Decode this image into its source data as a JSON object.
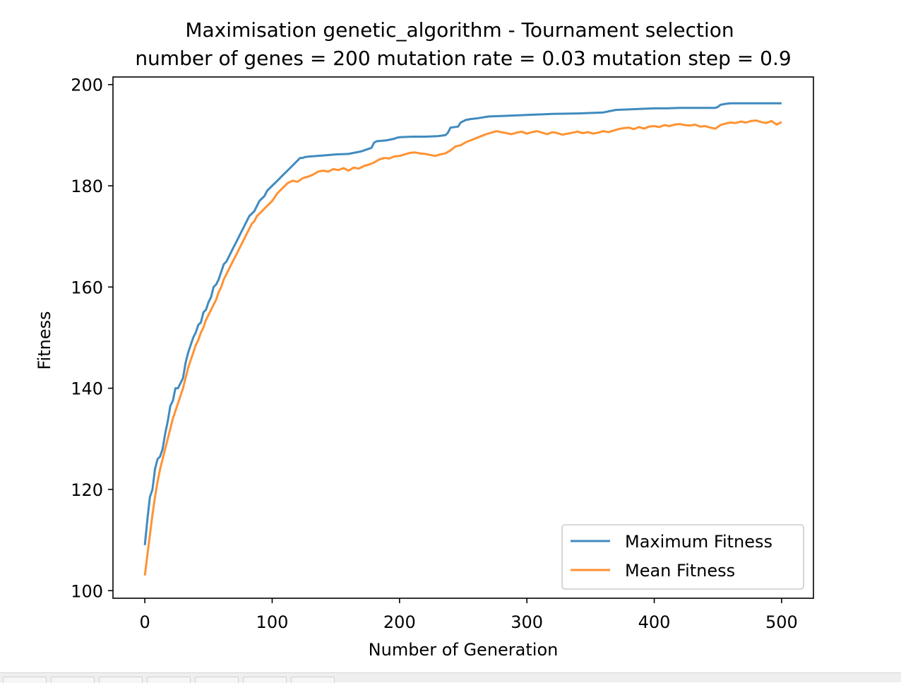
{
  "chart_data": {
    "type": "line",
    "title": "Maximisation genetic_algorithm - Tournament selection",
    "subtitle": "number of genes = 200 mutation rate = 0.03 mutation step = 0.9",
    "xlabel": "Number of Generation",
    "ylabel": "Fitness",
    "xlim": [
      -25,
      525
    ],
    "ylim": [
      98.5,
      201.5
    ],
    "xticks": [
      0,
      100,
      200,
      300,
      400,
      500
    ],
    "yticks": [
      100,
      120,
      140,
      160,
      180,
      200
    ],
    "grid": false,
    "legend_position": "lower-right",
    "series": [
      {
        "name": "Maximum Fitness",
        "color": "#1f77b4",
        "x": [
          0,
          2,
          4,
          6,
          8,
          10,
          12,
          14,
          16,
          18,
          20,
          22,
          24,
          26,
          28,
          30,
          32,
          34,
          36,
          38,
          40,
          42,
          44,
          46,
          48,
          50,
          52,
          54,
          56,
          58,
          60,
          62,
          64,
          66,
          68,
          70,
          72,
          74,
          76,
          78,
          80,
          82,
          84,
          86,
          88,
          90,
          92,
          94,
          96,
          98,
          100,
          102,
          104,
          106,
          108,
          110,
          112,
          114,
          116,
          118,
          120,
          122,
          124,
          126,
          130,
          140,
          150,
          160,
          170,
          178,
          180,
          182,
          190,
          196,
          198,
          200,
          210,
          220,
          230,
          236,
          238,
          240,
          246,
          248,
          252,
          256,
          260,
          270,
          280,
          290,
          300,
          320,
          340,
          360,
          366,
          370,
          380,
          390,
          400,
          410,
          420,
          430,
          440,
          448,
          450,
          452,
          456,
          460,
          470,
          480,
          490,
          500
        ],
        "values": [
          109,
          114,
          118.5,
          120,
          124,
          126,
          126.5,
          128,
          131,
          133.5,
          136.5,
          137.5,
          140,
          140,
          141,
          142,
          145,
          147,
          148.5,
          150,
          151,
          152.5,
          153,
          155,
          155.5,
          157,
          158,
          160,
          160.5,
          161.5,
          163,
          164.5,
          165,
          166,
          167,
          168,
          169,
          170,
          171,
          172,
          173,
          174,
          174.5,
          175,
          176,
          177,
          177.5,
          178,
          179,
          179.5,
          180,
          180.5,
          181,
          181.5,
          182,
          182.5,
          183,
          183.5,
          184,
          184.5,
          185,
          185.5,
          185.5,
          185.7,
          185.8,
          186,
          186.2,
          186.3,
          186.8,
          187.5,
          188.5,
          188.8,
          189,
          189.3,
          189.5,
          189.6,
          189.7,
          189.7,
          189.8,
          190,
          190.5,
          191.5,
          191.7,
          192.5,
          193,
          193.2,
          193.3,
          193.7,
          193.8,
          193.9,
          194,
          194.2,
          194.3,
          194.5,
          194.8,
          195,
          195.1,
          195.2,
          195.3,
          195.3,
          195.4,
          195.4,
          195.4,
          195.4,
          195.6,
          196,
          196.2,
          196.3,
          196.3,
          196.3,
          196.3,
          196.3
        ]
      },
      {
        "name": "Mean Fitness",
        "color": "#ff7f0e",
        "x": [
          0,
          2,
          4,
          6,
          8,
          10,
          12,
          14,
          16,
          18,
          20,
          22,
          24,
          26,
          28,
          30,
          32,
          34,
          36,
          38,
          40,
          42,
          44,
          46,
          48,
          50,
          52,
          54,
          56,
          58,
          60,
          62,
          64,
          66,
          68,
          70,
          72,
          74,
          76,
          78,
          80,
          82,
          84,
          86,
          88,
          90,
          92,
          94,
          96,
          98,
          100,
          104,
          108,
          112,
          116,
          120,
          124,
          128,
          132,
          136,
          140,
          144,
          148,
          152,
          156,
          160,
          164,
          168,
          172,
          176,
          180,
          184,
          188,
          192,
          196,
          200,
          204,
          208,
          212,
          216,
          220,
          224,
          228,
          232,
          236,
          240,
          244,
          248,
          252,
          256,
          260,
          264,
          268,
          272,
          276,
          280,
          284,
          288,
          292,
          296,
          300,
          304,
          308,
          312,
          316,
          320,
          324,
          328,
          332,
          336,
          340,
          344,
          348,
          352,
          356,
          360,
          364,
          368,
          372,
          376,
          380,
          384,
          388,
          392,
          396,
          400,
          404,
          408,
          412,
          416,
          420,
          424,
          428,
          432,
          436,
          440,
          444,
          448,
          452,
          456,
          460,
          464,
          468,
          472,
          476,
          480,
          484,
          488,
          492,
          496,
          500
        ],
        "values": [
          103,
          107,
          111,
          115,
          118.5,
          121.5,
          124,
          126,
          128,
          130,
          132,
          134,
          135.5,
          137,
          138.5,
          140,
          142,
          144,
          145.5,
          147,
          148.5,
          149.5,
          151,
          152,
          153.5,
          154.5,
          155.5,
          156.5,
          157.5,
          159,
          160,
          161.5,
          162.5,
          163.5,
          164.5,
          165.5,
          166.5,
          167.5,
          168.5,
          169.5,
          170.5,
          171.5,
          172.5,
          173,
          174,
          174.5,
          175,
          175.5,
          176,
          176.5,
          177,
          178.5,
          179.5,
          180.5,
          181,
          180.8,
          181.5,
          181.8,
          182.2,
          182.8,
          183,
          182.8,
          183.3,
          183.1,
          183.5,
          183,
          183.6,
          183.4,
          183.9,
          184.2,
          184.6,
          185.2,
          185.5,
          185.4,
          185.8,
          185.9,
          186.2,
          186.5,
          186.6,
          186.4,
          186.3,
          186.1,
          185.9,
          186.2,
          186.4,
          187,
          187.8,
          188,
          188.6,
          189,
          189.4,
          189.8,
          190.2,
          190.5,
          190.8,
          190.6,
          190.4,
          190.2,
          190.5,
          190.7,
          190.3,
          190.6,
          190.8,
          190.5,
          190.2,
          190.6,
          190.4,
          190.1,
          190.3,
          190.5,
          190.7,
          190.4,
          190.6,
          190.3,
          190.5,
          190.8,
          190.6,
          190.9,
          191.2,
          191.4,
          191.5,
          191.2,
          191.6,
          191.3,
          191.7,
          191.8,
          191.6,
          192,
          191.8,
          192.1,
          192.2,
          192,
          191.9,
          192.1,
          191.7,
          191.8,
          191.5,
          191.3,
          192,
          192.3,
          192.5,
          192.4,
          192.7,
          192.5,
          192.8,
          192.9,
          192.6,
          192.4,
          192.8,
          192.1,
          192.6
        ]
      }
    ]
  }
}
